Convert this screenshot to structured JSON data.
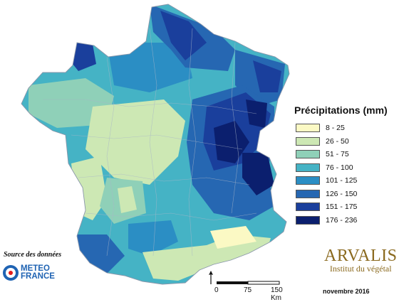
{
  "legend": {
    "title": "Précipitations (mm)",
    "classes": [
      {
        "label": "8 - 25",
        "color": "#fbf9c4"
      },
      {
        "label": "26 - 50",
        "color": "#cde8b4"
      },
      {
        "label": "51 - 75",
        "color": "#8fd0b8"
      },
      {
        "label": "76 - 100",
        "color": "#45b3c5"
      },
      {
        "label": "101 - 125",
        "color": "#2b8ec4"
      },
      {
        "label": "126 - 150",
        "color": "#2667b2"
      },
      {
        "label": "151 - 175",
        "color": "#1a3f9c"
      },
      {
        "label": "176 - 236",
        "color": "#0b1f6e"
      }
    ]
  },
  "source": {
    "label": "Source des données",
    "provider_line1": "METEO",
    "provider_line2": "FRANCE"
  },
  "scale": {
    "tick0": "0",
    "tick1": "75",
    "tick2": "150 Km"
  },
  "brand": {
    "name": "ARVALIS",
    "subtitle": "Institut du végétal"
  },
  "date": "novembre 2016",
  "icons": {
    "north_arrow": "north-arrow-icon",
    "meteo_logo": "meteo-france-logo",
    "arvalis_logo": "arvalis-logo"
  }
}
